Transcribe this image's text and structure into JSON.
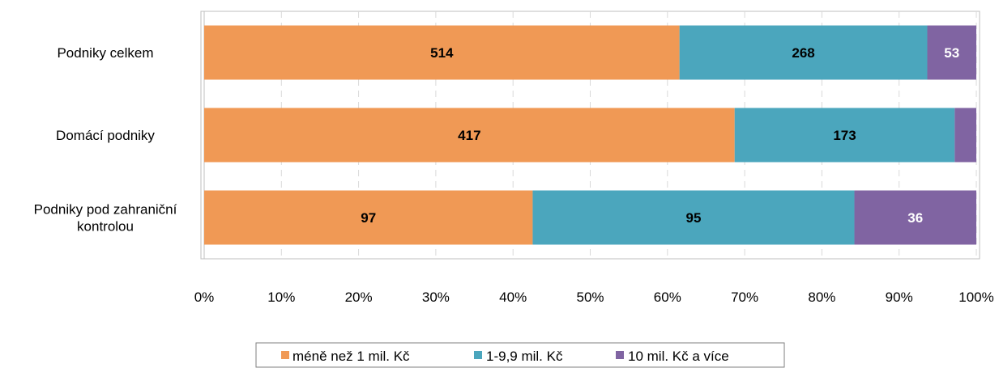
{
  "chart_data": {
    "type": "bar",
    "orientation": "horizontal",
    "stacked": "percent",
    "categories": [
      "Podniky celkem",
      "Domácí podniky",
      "Podniky pod zahraniční kontrolou"
    ],
    "category_lines": [
      [
        "Podniky celkem"
      ],
      [
        "Domácí podniky"
      ],
      [
        "Podniky pod zahraniční",
        "kontrolou"
      ]
    ],
    "series": [
      {
        "name": "méně než 1 mil. Kč",
        "values": [
          514,
          417,
          97
        ],
        "color": "#F09955",
        "label_color": "#000000"
      },
      {
        "name": "1-9,9 mil. Kč",
        "values": [
          268,
          173,
          95
        ],
        "color": "#4BA6BD",
        "label_color": "#000000"
      },
      {
        "name": "10 mil. Kč a více",
        "values": [
          53,
          17,
          36
        ],
        "color": "#8064A2",
        "label_color": "#ffffff"
      }
    ],
    "data_labels": [
      [
        "514",
        "268",
        "53"
      ],
      [
        "417",
        "173",
        ""
      ],
      [
        "97",
        "95",
        "36"
      ]
    ],
    "x_ticks": [
      "0%",
      "10%",
      "20%",
      "30%",
      "40%",
      "50%",
      "60%",
      "70%",
      "80%",
      "90%",
      "100%"
    ],
    "xlim": [
      0,
      100
    ],
    "grid": true,
    "legend_position": "bottom",
    "title": "",
    "xlabel": "",
    "ylabel": ""
  }
}
